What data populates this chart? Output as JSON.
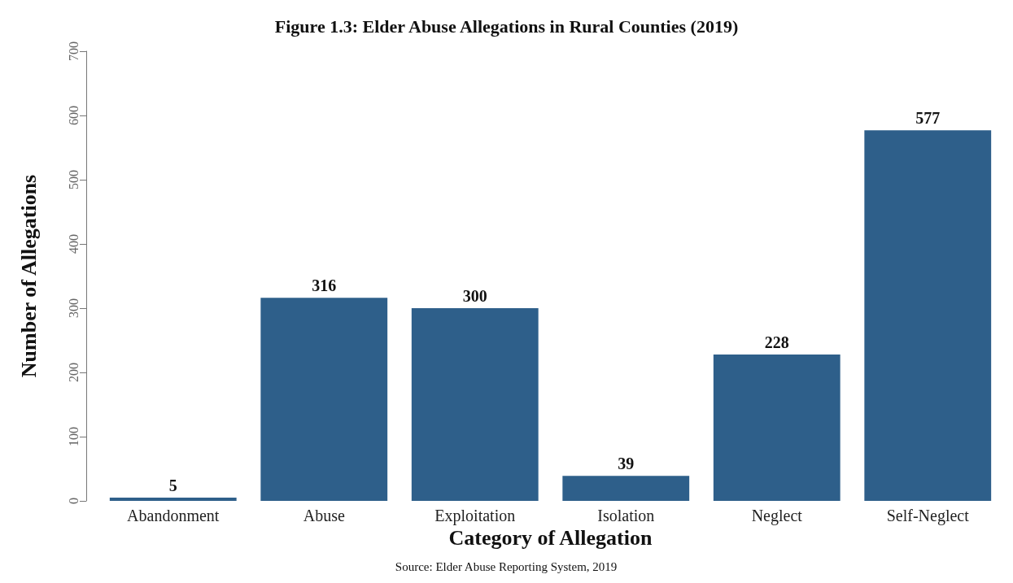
{
  "chart_data": {
    "type": "bar",
    "title": "Figure 1.3: Elder Abuse Allegations in Rural Counties (2019)",
    "xlabel": "Category of Allegation",
    "ylabel": "Number of Allegations",
    "categories": [
      "Abandonment",
      "Abuse",
      "Exploitation",
      "Isolation",
      "Neglect",
      "Self-Neglect"
    ],
    "values": [
      5,
      316,
      300,
      39,
      228,
      577
    ],
    "color": "#2e5f8a",
    "ylim": [
      0,
      700
    ],
    "yticks": [
      0,
      100,
      200,
      300,
      400,
      500,
      600,
      700
    ],
    "grid": false,
    "data_labels": true,
    "annotations": [
      "Source: Elder Abuse Reporting System, 2019"
    ]
  }
}
